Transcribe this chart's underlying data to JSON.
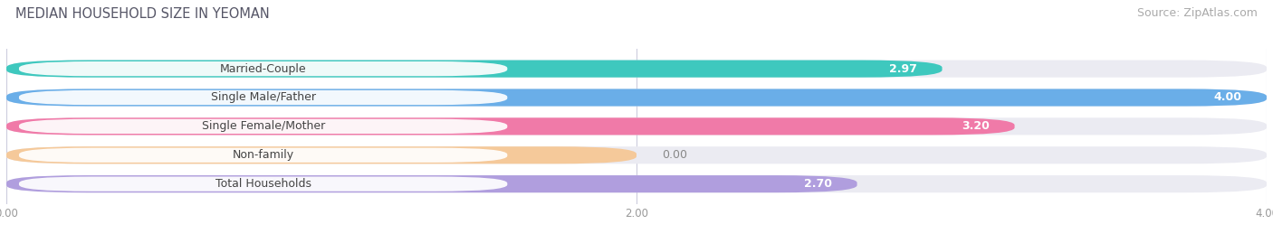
{
  "title": "MEDIAN HOUSEHOLD SIZE IN YEOMAN",
  "source": "Source: ZipAtlas.com",
  "categories": [
    "Married-Couple",
    "Single Male/Father",
    "Single Female/Mother",
    "Non-family",
    "Total Households"
  ],
  "values": [
    2.97,
    4.0,
    3.2,
    0.0,
    2.7
  ],
  "bar_colors": [
    "#3ec8be",
    "#6aaee8",
    "#f07aa8",
    "#f5c99a",
    "#b09ede"
  ],
  "xlim": [
    0,
    4.0
  ],
  "xticks": [
    0.0,
    2.0,
    4.0
  ],
  "xtick_labels": [
    "0.00",
    "2.00",
    "4.00"
  ],
  "background_color": "#ffffff",
  "bar_bg_color": "#ebebf2",
  "title_fontsize": 10.5,
  "source_fontsize": 9,
  "label_fontsize": 9,
  "value_fontsize": 9,
  "nonfamily_bar_width": 2.0
}
